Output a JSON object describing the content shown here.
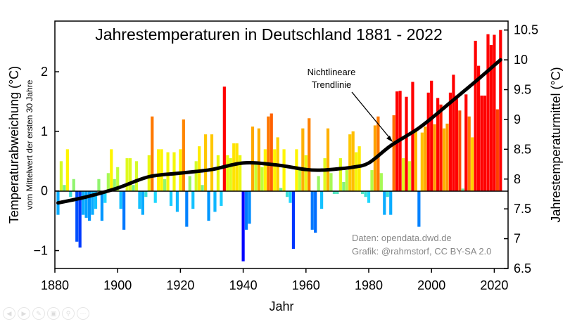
{
  "chart_data": {
    "type": "bar",
    "title": "Jahrestemperaturen in Deutschland 1881 - 2022",
    "xlabel": "Jahr",
    "ylabel": "Temperaturabweichung (°C)",
    "ylabel_sub": "vom Mittelwert der ersten 30 Jahre",
    "y2label": "Jahrestemperaturmittel (°C)",
    "xlim": [
      1880,
      2024
    ],
    "ylim": [
      -1.3,
      2.85
    ],
    "y2lim": [
      6.5,
      10.65
    ],
    "xticks": [
      1880,
      1900,
      1920,
      1940,
      1960,
      1980,
      2000,
      2020
    ],
    "yticks": [
      -1,
      0,
      1,
      2
    ],
    "y2ticks": [
      "6.5",
      "7",
      "7.5",
      "8",
      "8.5",
      "9",
      "9.5",
      "10",
      "10.5"
    ],
    "grid": false,
    "years_start": 1881,
    "values": [
      -0.4,
      0.5,
      0.1,
      0.7,
      -0.1,
      0.2,
      -0.85,
      -0.95,
      -0.4,
      -0.45,
      -0.5,
      -0.4,
      -0.3,
      0.2,
      -0.5,
      -0.2,
      0.3,
      0.7,
      0.2,
      0.4,
      -0.3,
      -0.65,
      0.55,
      0.55,
      0.1,
      0.5,
      -0.3,
      -0.4,
      -0.1,
      0.6,
      1.25,
      -0.2,
      0.7,
      0.7,
      0.2,
      0.65,
      -0.25,
      0.65,
      -0.35,
      0.7,
      1.2,
      -0.6,
      0.25,
      -0.3,
      0.5,
      0.75,
      0.1,
      0.95,
      -0.5,
      0.95,
      -0.35,
      0.6,
      -0.25,
      1.75,
      0.6,
      0.55,
      0.8,
      0.8,
      0.6,
      -1.18,
      -0.65,
      -0.55,
      1.08,
      0.45,
      1.05,
      0.4,
      0.7,
      1.25,
      1.3,
      0.7,
      0.9,
      0.05,
      0.7,
      -0.1,
      -0.2,
      -0.97,
      0.7,
      0.4,
      1.05,
      0.6,
      1.22,
      -0.65,
      -0.7,
      0.25,
      -0.3,
      0.55,
      1.05,
      0.3,
      -0.05,
      -0.05,
      0.55,
      0.15,
      0.35,
      0.95,
      1.0,
      0.65,
      0.75,
      -0.05,
      -0.1,
      -0.2,
      0.35,
      1.1,
      1.25,
      0.3,
      -0.4,
      -0.1,
      -0.4,
      1.27,
      1.67,
      1.68,
      0.55,
      1.58,
      0.5,
      1.83,
      1.0,
      -0.6,
      0.98,
      1.08,
      1.65,
      1.85,
      1.12,
      1.56,
      1.45,
      1.05,
      1.13,
      1.65,
      1.95,
      1.6,
      1.35,
      0.04,
      1.62,
      1.25,
      0.9,
      2.52,
      2.1,
      1.6,
      1.6,
      2.63,
      2.45,
      2.62,
      1.37,
      2.7
    ],
    "trend": {
      "name": "Nichtlineare Trendlinie",
      "x": [
        1881,
        1890,
        1900,
        1910,
        1920,
        1930,
        1940,
        1950,
        1960,
        1965,
        1970,
        1975,
        1980,
        1987,
        1995,
        2000,
        2005,
        2010,
        2015,
        2022
      ],
      "y": [
        -0.2,
        -0.1,
        0.05,
        0.24,
        0.3,
        0.36,
        0.47,
        0.44,
        0.36,
        0.35,
        0.37,
        0.4,
        0.47,
        0.76,
        1.02,
        1.22,
        1.44,
        1.66,
        1.88,
        2.2
      ]
    },
    "annotation": [
      "Nichtlineare",
      "Trendlinie"
    ],
    "credits": [
      "Daten: opendata.dwd.de",
      "Grafik: @rahmstorf, CC BY-SA 2.0"
    ]
  },
  "slide_controls": [
    "previous-icon",
    "next-icon",
    "pen-icon",
    "slides-icon",
    "zoom-icon",
    "more-icon"
  ]
}
